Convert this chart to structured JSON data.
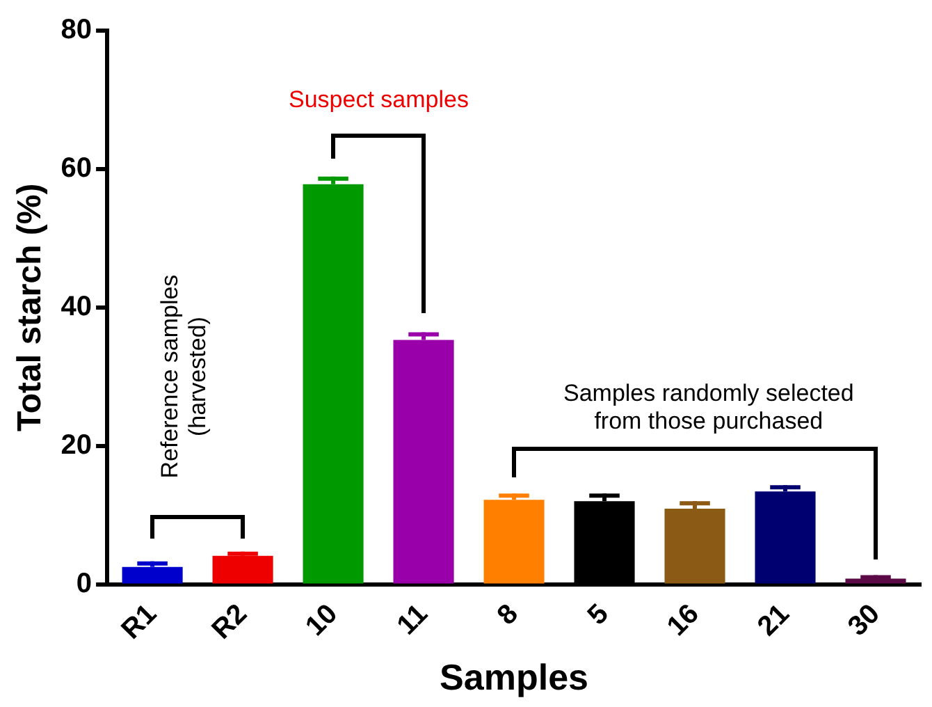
{
  "chart_data": {
    "type": "bar",
    "xlabel": "Samples",
    "ylabel": "Total starch (%)",
    "categories": [
      "R1",
      "R2",
      "10",
      "11",
      "8",
      "5",
      "16",
      "21",
      "30"
    ],
    "values": [
      2.5,
      4.1,
      57.8,
      35.3,
      12.2,
      12.0,
      10.9,
      13.4,
      0.8
    ],
    "errors": [
      [
        2.5,
        3.3
      ],
      [
        4.1,
        4.7
      ],
      [
        57.8,
        58.9
      ],
      [
        35.3,
        36.4
      ],
      [
        12.2,
        13.1
      ],
      [
        12.0,
        13.1
      ],
      [
        10.9,
        12.0
      ],
      [
        13.4,
        14.3
      ],
      [
        0.8,
        1.3
      ]
    ],
    "colors": [
      "#0000cc",
      "#ee0000",
      "#009900",
      "#9900aa",
      "#ff8000",
      "#000000",
      "#8b5a14",
      "#000070",
      "#5c0a46"
    ],
    "ylim": [
      0,
      80
    ],
    "yticks": [
      0,
      20,
      40,
      60,
      80
    ],
    "grid": false,
    "legend": false,
    "annotations": [
      "Reference samples\n(harvested)",
      "Suspect samples",
      "Samples randomly selected\nfrom those purchased"
    ]
  }
}
